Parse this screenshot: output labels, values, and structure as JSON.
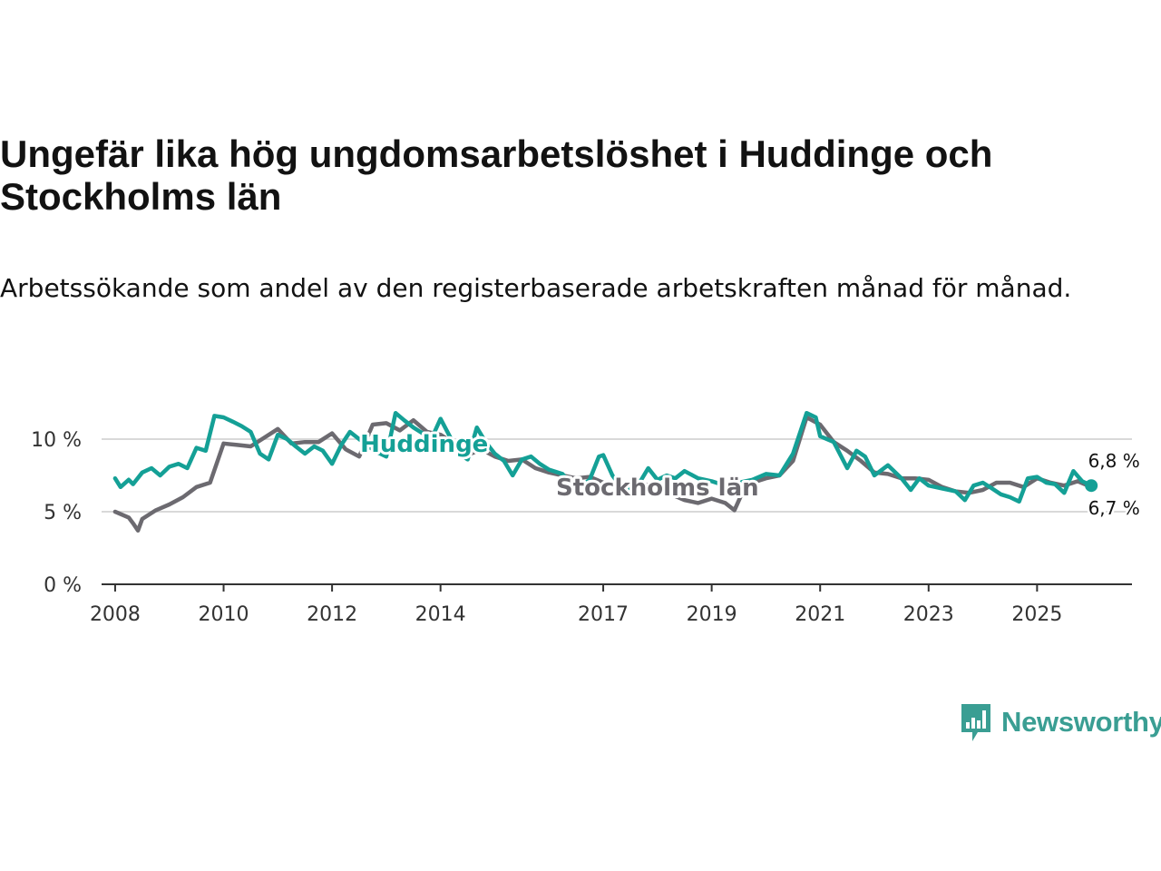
{
  "title": "Ungefär lika hög ungdomsarbetslöshet i Huddinge och Stockholms län",
  "subtitle": "Arbetssökande som andel av den registerbaserade arbetskraften månad för månad.",
  "brand": "Newsworthy",
  "colors": {
    "huddinge": "#14a096",
    "stockholm": "#6c6a70",
    "grid": "#d9d9d9",
    "axis": "#333333"
  },
  "chart_data": {
    "type": "line",
    "title": "Ungefär lika hög ungdomsarbetslöshet i Huddinge och Stockholms län",
    "xlabel": "",
    "ylabel": "",
    "ylim": [
      0,
      12
    ],
    "xlim": [
      2007.75,
      2026.75
    ],
    "yticks": [
      {
        "value": 0,
        "label": "0 %"
      },
      {
        "value": 5,
        "label": "5 %"
      },
      {
        "value": 10,
        "label": "10 %"
      }
    ],
    "xticks": [
      {
        "value": 2008,
        "label": "2008"
      },
      {
        "value": 2010,
        "label": "2010"
      },
      {
        "value": 2012,
        "label": "2012"
      },
      {
        "value": 2014,
        "label": "2014"
      },
      {
        "value": 2017,
        "label": "2017"
      },
      {
        "value": 2019,
        "label": "2019"
      },
      {
        "value": 2021,
        "label": "2021"
      },
      {
        "value": 2023,
        "label": "2023"
      },
      {
        "value": 2025,
        "label": "2025"
      }
    ],
    "series": [
      {
        "name": "Stockholms län",
        "label": "Stockholms län",
        "label_at": [
          2018.0,
          6.7
        ],
        "end_label": "6,7 %",
        "points": [
          [
            2008.0,
            5.0
          ],
          [
            2008.25,
            4.6
          ],
          [
            2008.33,
            4.2
          ],
          [
            2008.42,
            3.7
          ],
          [
            2008.5,
            4.5
          ],
          [
            2008.75,
            5.1
          ],
          [
            2009.0,
            5.5
          ],
          [
            2009.25,
            6.0
          ],
          [
            2009.5,
            6.7
          ],
          [
            2009.75,
            7.0
          ],
          [
            2010.0,
            9.7
          ],
          [
            2010.25,
            9.6
          ],
          [
            2010.5,
            9.5
          ],
          [
            2010.75,
            10.1
          ],
          [
            2011.0,
            10.7
          ],
          [
            2011.25,
            9.7
          ],
          [
            2011.5,
            9.8
          ],
          [
            2011.75,
            9.8
          ],
          [
            2012.0,
            10.4
          ],
          [
            2012.25,
            9.3
          ],
          [
            2012.5,
            8.8
          ],
          [
            2012.75,
            11.0
          ],
          [
            2013.0,
            11.1
          ],
          [
            2013.25,
            10.6
          ],
          [
            2013.5,
            11.3
          ],
          [
            2013.75,
            10.5
          ],
          [
            2014.0,
            10.3
          ],
          [
            2014.25,
            9.7
          ],
          [
            2014.5,
            8.9
          ],
          [
            2014.75,
            9.3
          ],
          [
            2015.0,
            8.8
          ],
          [
            2015.25,
            8.5
          ],
          [
            2015.5,
            8.6
          ],
          [
            2015.75,
            8.0
          ],
          [
            2016.0,
            7.7
          ],
          [
            2016.25,
            7.5
          ],
          [
            2016.5,
            7.3
          ],
          [
            2016.75,
            7.4
          ],
          [
            2017.0,
            7.0
          ],
          [
            2017.25,
            6.6
          ],
          [
            2017.5,
            6.5
          ],
          [
            2017.75,
            6.9
          ],
          [
            2018.0,
            6.7
          ],
          [
            2018.25,
            6.2
          ],
          [
            2018.5,
            5.8
          ],
          [
            2018.75,
            5.6
          ],
          [
            2019.0,
            5.9
          ],
          [
            2019.25,
            5.6
          ],
          [
            2019.42,
            5.1
          ],
          [
            2019.6,
            6.6
          ],
          [
            2019.75,
            7.0
          ],
          [
            2020.0,
            7.3
          ],
          [
            2020.25,
            7.5
          ],
          [
            2020.5,
            8.5
          ],
          [
            2020.75,
            11.5
          ],
          [
            2021.0,
            11.0
          ],
          [
            2021.25,
            9.8
          ],
          [
            2021.5,
            9.2
          ],
          [
            2021.75,
            8.5
          ],
          [
            2022.0,
            7.7
          ],
          [
            2022.25,
            7.6
          ],
          [
            2022.5,
            7.3
          ],
          [
            2022.75,
            7.3
          ],
          [
            2023.0,
            7.2
          ],
          [
            2023.25,
            6.7
          ],
          [
            2023.5,
            6.4
          ],
          [
            2023.75,
            6.3
          ],
          [
            2024.0,
            6.5
          ],
          [
            2024.25,
            7.0
          ],
          [
            2024.5,
            7.0
          ],
          [
            2024.75,
            6.7
          ],
          [
            2025.0,
            7.3
          ],
          [
            2025.25,
            7.0
          ],
          [
            2025.5,
            6.8
          ],
          [
            2025.75,
            7.1
          ],
          [
            2026.0,
            6.7
          ]
        ]
      },
      {
        "name": "Huddinge",
        "label": "Huddinge",
        "label_at": [
          2013.7,
          9.7
        ],
        "end_label": "6,8 %",
        "points": [
          [
            2008.0,
            7.3
          ],
          [
            2008.1,
            6.7
          ],
          [
            2008.25,
            7.2
          ],
          [
            2008.33,
            6.9
          ],
          [
            2008.5,
            7.7
          ],
          [
            2008.67,
            8.0
          ],
          [
            2008.83,
            7.5
          ],
          [
            2009.0,
            8.1
          ],
          [
            2009.17,
            8.3
          ],
          [
            2009.33,
            8.0
          ],
          [
            2009.5,
            9.4
          ],
          [
            2009.67,
            9.2
          ],
          [
            2009.83,
            11.6
          ],
          [
            2010.0,
            11.5
          ],
          [
            2010.17,
            11.2
          ],
          [
            2010.33,
            10.9
          ],
          [
            2010.5,
            10.5
          ],
          [
            2010.67,
            9.0
          ],
          [
            2010.83,
            8.6
          ],
          [
            2011.0,
            10.3
          ],
          [
            2011.17,
            10.0
          ],
          [
            2011.33,
            9.5
          ],
          [
            2011.5,
            9.0
          ],
          [
            2011.67,
            9.5
          ],
          [
            2011.83,
            9.2
          ],
          [
            2012.0,
            8.3
          ],
          [
            2012.17,
            9.6
          ],
          [
            2012.33,
            10.5
          ],
          [
            2012.5,
            10.0
          ],
          [
            2012.67,
            9.5
          ],
          [
            2012.83,
            9.1
          ],
          [
            2013.0,
            8.8
          ],
          [
            2013.17,
            11.8
          ],
          [
            2013.33,
            11.3
          ],
          [
            2013.5,
            10.8
          ],
          [
            2013.67,
            10.4
          ],
          [
            2013.83,
            10.0
          ],
          [
            2014.0,
            11.4
          ],
          [
            2014.17,
            10.2
          ],
          [
            2014.33,
            9.0
          ],
          [
            2014.5,
            8.6
          ],
          [
            2014.67,
            10.8
          ],
          [
            2014.83,
            9.8
          ],
          [
            2015.0,
            9.0
          ],
          [
            2015.17,
            8.5
          ],
          [
            2015.33,
            7.5
          ],
          [
            2015.5,
            8.6
          ],
          [
            2015.67,
            8.8
          ],
          [
            2015.83,
            8.3
          ],
          [
            2016.0,
            7.9
          ],
          [
            2016.25,
            7.6
          ],
          [
            2016.5,
            6.5
          ],
          [
            2016.75,
            7.2
          ],
          [
            2016.92,
            8.8
          ],
          [
            2017.0,
            8.9
          ],
          [
            2017.17,
            7.5
          ],
          [
            2017.33,
            6.7
          ],
          [
            2017.5,
            6.5
          ],
          [
            2017.67,
            7.0
          ],
          [
            2017.83,
            8.0
          ],
          [
            2018.0,
            7.2
          ],
          [
            2018.17,
            7.5
          ],
          [
            2018.33,
            7.3
          ],
          [
            2018.5,
            7.8
          ],
          [
            2018.75,
            7.3
          ],
          [
            2019.0,
            7.1
          ],
          [
            2019.25,
            6.8
          ],
          [
            2019.5,
            7.0
          ],
          [
            2019.75,
            7.2
          ],
          [
            2020.0,
            7.6
          ],
          [
            2020.25,
            7.5
          ],
          [
            2020.5,
            9.0
          ],
          [
            2020.75,
            11.8
          ],
          [
            2020.92,
            11.5
          ],
          [
            2021.0,
            10.2
          ],
          [
            2021.25,
            9.8
          ],
          [
            2021.5,
            8.0
          ],
          [
            2021.67,
            9.2
          ],
          [
            2021.83,
            8.8
          ],
          [
            2022.0,
            7.5
          ],
          [
            2022.25,
            8.2
          ],
          [
            2022.5,
            7.3
          ],
          [
            2022.67,
            6.5
          ],
          [
            2022.83,
            7.3
          ],
          [
            2023.0,
            6.8
          ],
          [
            2023.25,
            6.6
          ],
          [
            2023.5,
            6.4
          ],
          [
            2023.67,
            5.8
          ],
          [
            2023.83,
            6.8
          ],
          [
            2024.0,
            7.0
          ],
          [
            2024.17,
            6.6
          ],
          [
            2024.33,
            6.2
          ],
          [
            2024.5,
            6.0
          ],
          [
            2024.67,
            5.7
          ],
          [
            2024.83,
            7.3
          ],
          [
            2025.0,
            7.4
          ],
          [
            2025.17,
            7.0
          ],
          [
            2025.33,
            6.9
          ],
          [
            2025.5,
            6.3
          ],
          [
            2025.67,
            7.8
          ],
          [
            2025.83,
            7.1
          ],
          [
            2026.0,
            6.8
          ]
        ]
      }
    ]
  }
}
